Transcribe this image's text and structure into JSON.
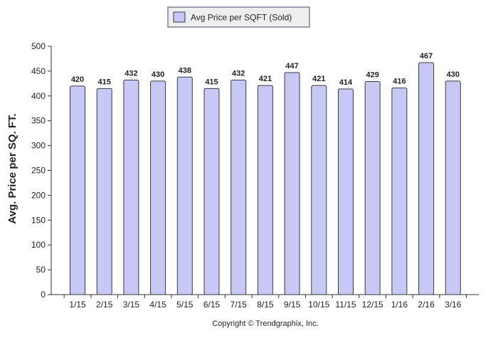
{
  "chart_data": {
    "type": "bar",
    "title": "",
    "xlabel": "",
    "ylabel": "Avg. Price per SQ. FT.",
    "categories": [
      "1/15",
      "2/15",
      "3/15",
      "4/15",
      "5/15",
      "6/15",
      "7/15",
      "8/15",
      "9/15",
      "10/15",
      "11/15",
      "12/15",
      "1/16",
      "2/16",
      "3/16"
    ],
    "series": [
      {
        "name": "Avg Price per SQFT (Sold)",
        "values": [
          420,
          415,
          432,
          430,
          438,
          415,
          432,
          421,
          447,
          421,
          414,
          429,
          416,
          467,
          430
        ]
      }
    ],
    "ylim": [
      0,
      500
    ],
    "yticks": [
      0,
      50,
      100,
      150,
      200,
      250,
      300,
      350,
      400,
      450,
      500
    ],
    "grid": false,
    "legend_position": "top-center",
    "data_labels": true,
    "colors": {
      "bar_fill": "#c8c8f7",
      "bar_stroke": "#3a3a3a",
      "legend_border": "#444466",
      "legend_swatch": "#c8c8f7",
      "text": "#222222"
    }
  },
  "footer": {
    "copyright": "Copyright © Trendgraphix, Inc."
  }
}
